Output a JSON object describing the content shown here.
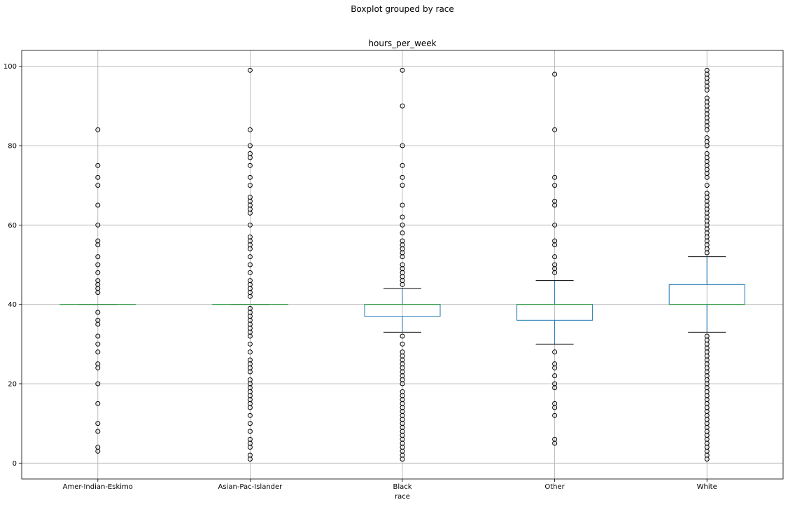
{
  "chart_data": {
    "type": "boxplot",
    "suptitle": "Boxplot grouped by race",
    "title": "hours_per_week",
    "xlabel": "race",
    "ylabel": "",
    "ylim": [
      -4,
      104
    ],
    "yticks": [
      0,
      20,
      40,
      60,
      80,
      100
    ],
    "grid": true,
    "categories": [
      "Amer-Indian-Eskimo",
      "Asian-Pac-Islander",
      "Black",
      "Other",
      "White"
    ],
    "colors": {
      "box": "#1f77b4",
      "median": "#2ca02c",
      "cap": "#000000",
      "flier": "#000000",
      "grid": "#b0b0b0"
    },
    "boxes": [
      {
        "category": "Amer-Indian-Eskimo",
        "whislo": 40,
        "q1": 40,
        "med": 40,
        "q3": 40,
        "whishi": 40,
        "fliers": [
          3,
          4,
          8,
          10,
          15,
          20,
          24,
          25,
          28,
          30,
          32,
          35,
          36,
          38,
          43,
          44,
          45,
          46,
          48,
          50,
          52,
          55,
          56,
          60,
          65,
          70,
          72,
          75,
          84
        ]
      },
      {
        "category": "Asian-Pac-Islander",
        "whislo": 40,
        "q1": 40,
        "med": 40,
        "q3": 40,
        "whishi": 40,
        "fliers": [
          1,
          2,
          4,
          5,
          6,
          8,
          10,
          12,
          14,
          15,
          16,
          17,
          18,
          19,
          20,
          21,
          23,
          24,
          25,
          26,
          28,
          30,
          32,
          33,
          34,
          35,
          36,
          37,
          38,
          39,
          42,
          43,
          44,
          45,
          46,
          48,
          50,
          52,
          54,
          55,
          56,
          57,
          60,
          63,
          64,
          65,
          66,
          67,
          70,
          72,
          75,
          77,
          78,
          80,
          84,
          99
        ]
      },
      {
        "category": "Black",
        "whislo": 33,
        "q1": 37,
        "med": 40,
        "q3": 40,
        "whishi": 44,
        "fliers": [
          1,
          2,
          3,
          4,
          5,
          6,
          7,
          8,
          9,
          10,
          11,
          12,
          13,
          14,
          15,
          16,
          17,
          18,
          20,
          21,
          22,
          23,
          24,
          25,
          26,
          27,
          28,
          30,
          32,
          45,
          46,
          47,
          48,
          49,
          50,
          52,
          53,
          54,
          55,
          56,
          58,
          60,
          62,
          65,
          70,
          72,
          75,
          80,
          90,
          99
        ]
      },
      {
        "category": "Other",
        "whislo": 30,
        "q1": 36,
        "med": 40,
        "q3": 40,
        "whishi": 46,
        "fliers": [
          5,
          6,
          12,
          14,
          15,
          19,
          20,
          22,
          24,
          25,
          28,
          48,
          49,
          50,
          52,
          55,
          56,
          60,
          65,
          66,
          70,
          72,
          84,
          98
        ]
      },
      {
        "category": "White",
        "whislo": 33,
        "q1": 40,
        "med": 40,
        "q3": 45,
        "whishi": 52,
        "fliers": [
          1,
          2,
          3,
          4,
          5,
          6,
          7,
          8,
          9,
          10,
          11,
          12,
          13,
          14,
          15,
          16,
          17,
          18,
          19,
          20,
          21,
          22,
          23,
          24,
          25,
          26,
          27,
          28,
          29,
          30,
          31,
          32,
          53,
          54,
          55,
          56,
          57,
          58,
          59,
          60,
          61,
          62,
          63,
          64,
          65,
          66,
          67,
          68,
          70,
          72,
          73,
          74,
          75,
          76,
          77,
          78,
          80,
          81,
          82,
          84,
          85,
          86,
          87,
          88,
          89,
          90,
          91,
          92,
          94,
          95,
          96,
          97,
          98,
          99
        ]
      }
    ]
  }
}
